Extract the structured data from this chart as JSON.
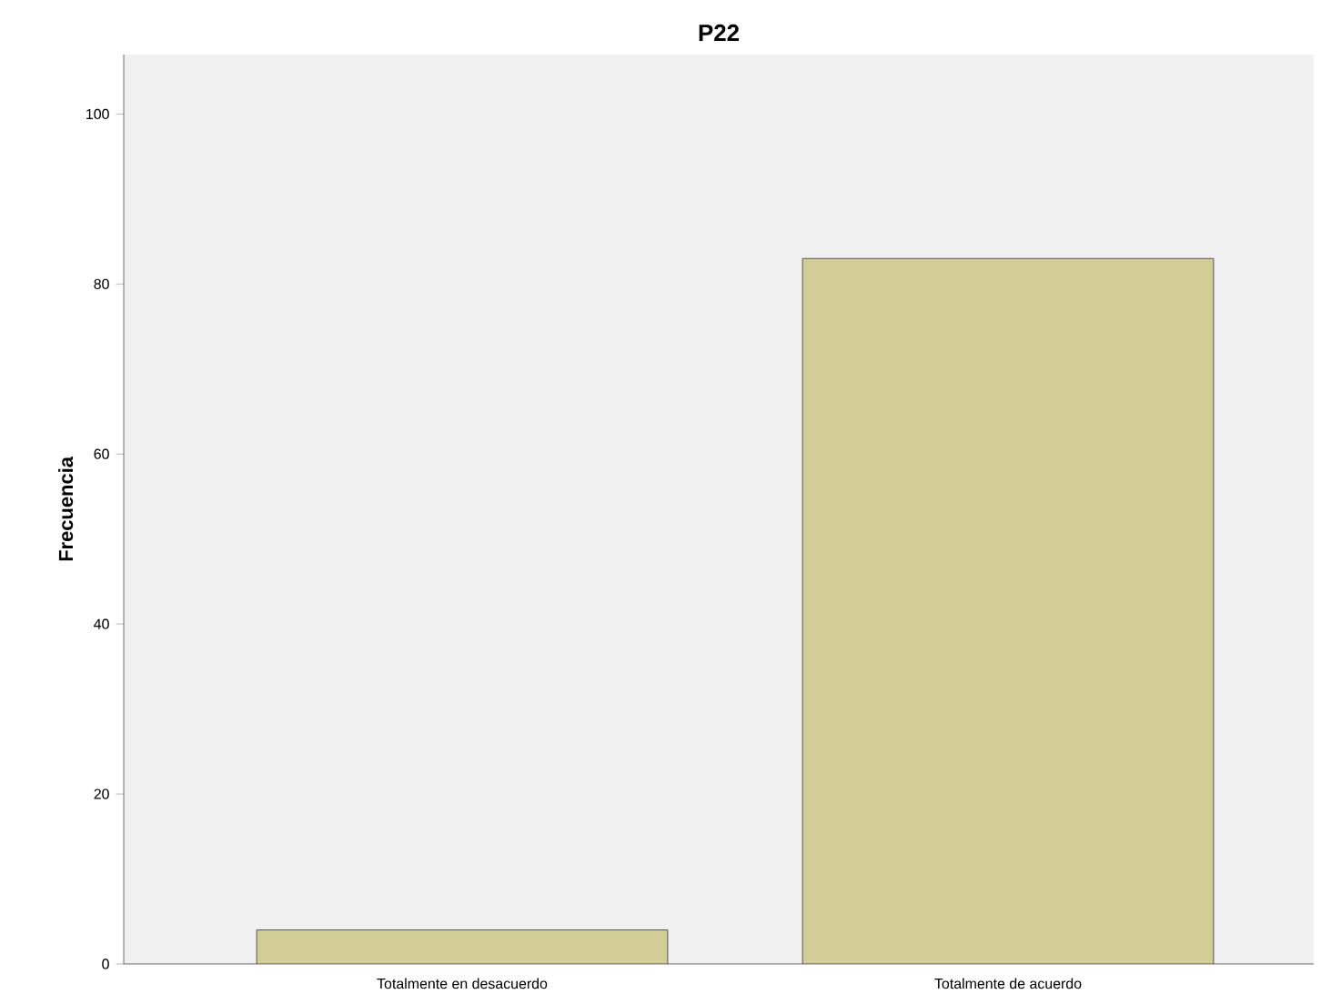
{
  "chart_data": {
    "type": "bar",
    "title": "P22",
    "ylabel": "Frecuencia",
    "categories": [
      "Totalmente en desacuerdo",
      "Totalmente de acuerdo"
    ],
    "values": [
      4,
      83
    ],
    "color": "#d3ce97",
    "ylim": [
      0,
      107
    ],
    "yticks": [
      0,
      20,
      40,
      60,
      80,
      100
    ]
  }
}
